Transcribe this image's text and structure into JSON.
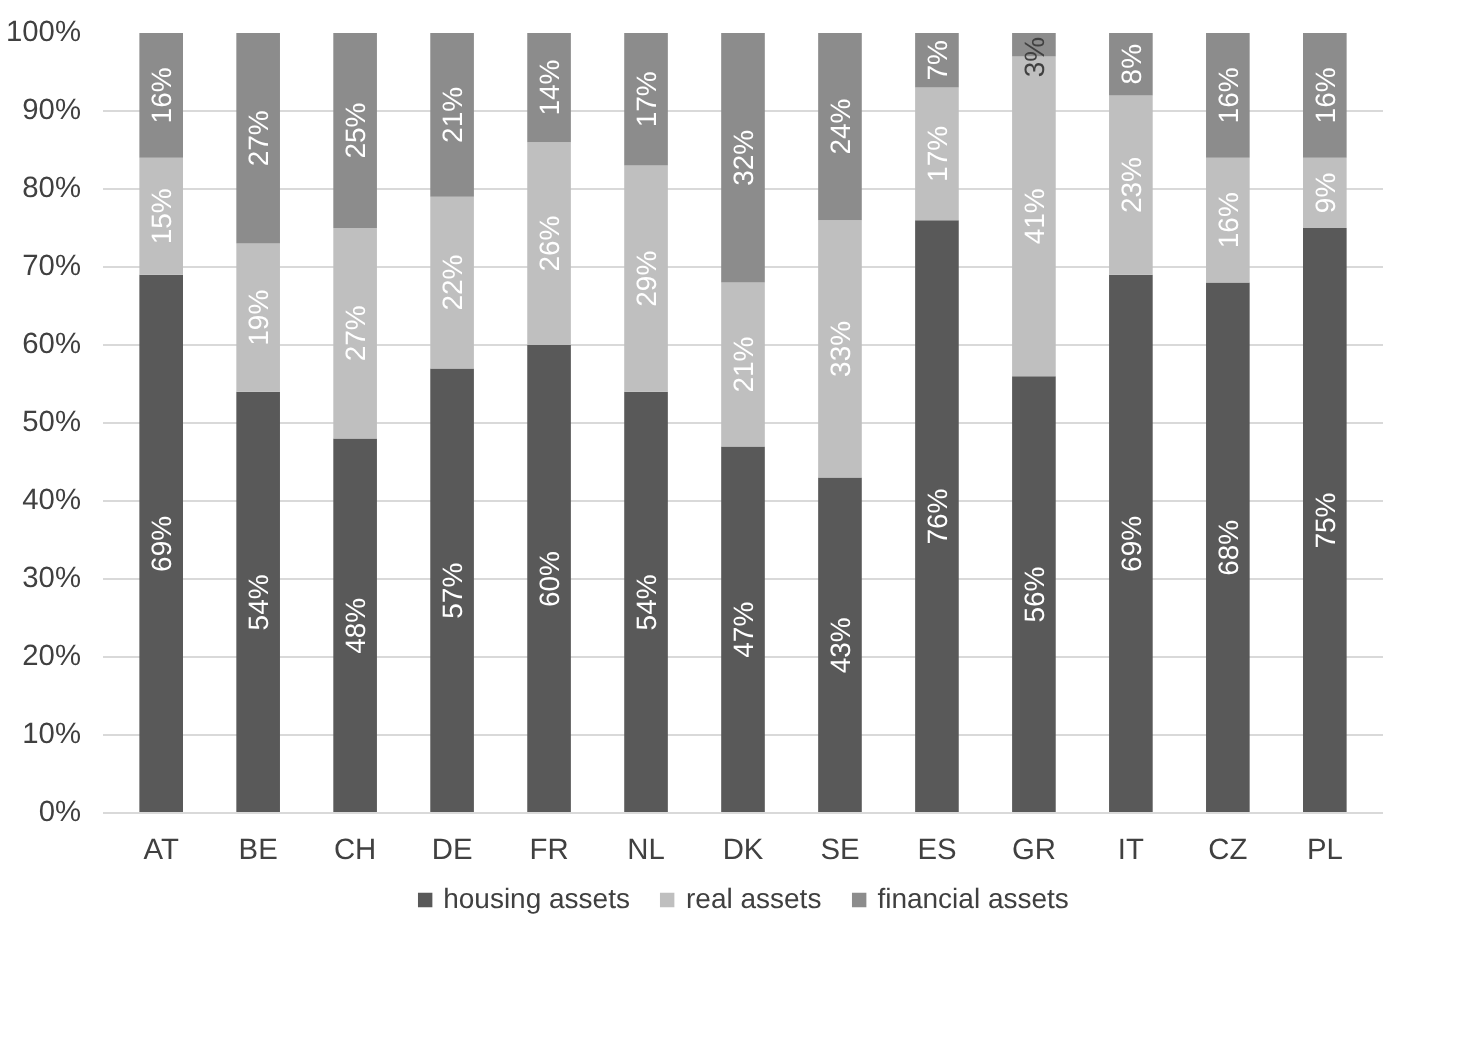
{
  "chart_data": {
    "type": "bar",
    "stacked": true,
    "categories": [
      "AT",
      "BE",
      "CH",
      "DE",
      "FR",
      "NL",
      "DK",
      "SE",
      "ES",
      "GR",
      "IT",
      "CZ",
      "PL"
    ],
    "series": [
      {
        "name": "housing assets",
        "color": "#595959",
        "values": [
          69,
          54,
          48,
          57,
          60,
          54,
          47,
          43,
          76,
          56,
          69,
          68,
          75
        ],
        "value_labels": [
          "69%",
          "54%",
          "48%",
          "57%",
          "60%",
          "54%",
          "47%",
          "43%",
          "76%",
          "56%",
          "69%",
          "68%",
          "75%"
        ]
      },
      {
        "name": "real assets",
        "color": "#bfbfbf",
        "values": [
          15,
          19,
          27,
          22,
          26,
          29,
          21,
          33,
          17,
          41,
          23,
          16,
          9
        ],
        "value_labels": [
          "15%",
          "19%",
          "27%",
          "22%",
          "26%",
          "29%",
          "21%",
          "33%",
          "17%",
          "41%",
          "23%",
          "16%",
          "9%"
        ]
      },
      {
        "name": "financial assets",
        "color": "#8c8c8c",
        "values": [
          16,
          27,
          25,
          21,
          14,
          17,
          32,
          24,
          7,
          3,
          8,
          16,
          16
        ],
        "value_labels": [
          "16%",
          "27%",
          "25%",
          "21%",
          "14%",
          "17%",
          "32%",
          "24%",
          "7%",
          "3%",
          "8%",
          "16%",
          "16%"
        ]
      }
    ],
    "ylim": [
      0,
      100
    ],
    "yticks": [
      {
        "value": 0,
        "label": "0%"
      },
      {
        "value": 10,
        "label": "10%"
      },
      {
        "value": 20,
        "label": "20%"
      },
      {
        "value": 30,
        "label": "30%"
      },
      {
        "value": 40,
        "label": "40%"
      },
      {
        "value": 50,
        "label": "50%"
      },
      {
        "value": 60,
        "label": "60%"
      },
      {
        "value": 70,
        "label": "70%"
      },
      {
        "value": 80,
        "label": "80%"
      },
      {
        "value": 90,
        "label": "90%"
      },
      {
        "value": 100,
        "label": "100%"
      }
    ],
    "grid": "y",
    "legend": "bottom"
  }
}
